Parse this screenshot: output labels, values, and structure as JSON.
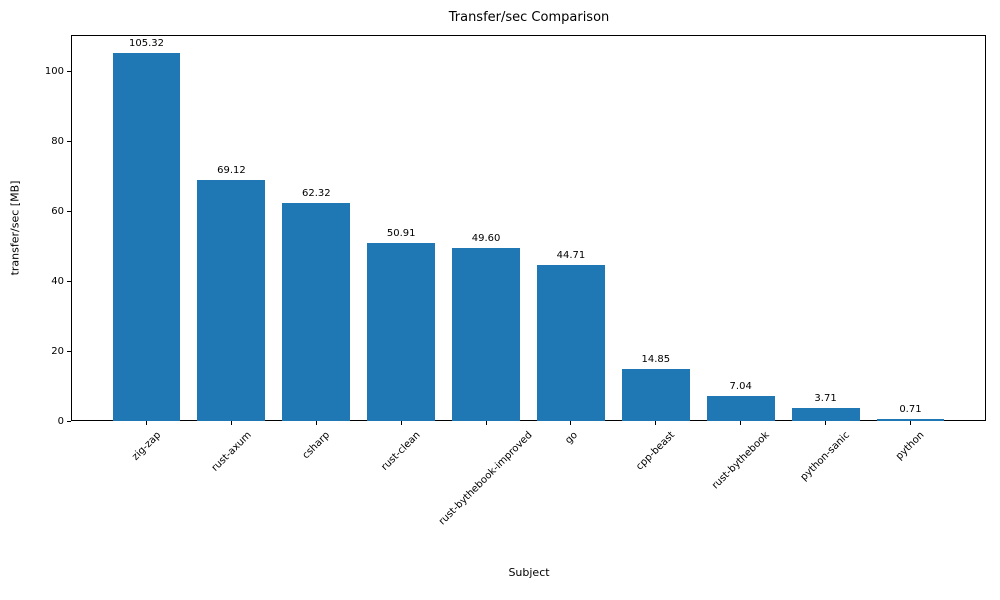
{
  "chart_data": {
    "type": "bar",
    "title": "Transfer/sec Comparison",
    "xlabel": "Subject",
    "ylabel": "transfer/sec [MB]",
    "categories": [
      "zig-zap",
      "rust-axum",
      "csharp",
      "rust-clean",
      "rust-bythebook-improved",
      "go",
      "cpp-beast",
      "rust-bythebook",
      "python-sanic",
      "python"
    ],
    "values": [
      105.32,
      69.12,
      62.32,
      50.91,
      49.6,
      44.71,
      14.85,
      7.04,
      3.71,
      0.71
    ],
    "bar_value_labels": [
      "105.32",
      "69.12",
      "62.32",
      "50.91",
      "49.60",
      "44.71",
      "14.85",
      "7.04",
      "3.71",
      "0.71"
    ],
    "ylim": [
      0,
      110.6
    ],
    "yticks": [
      0,
      20,
      40,
      60,
      80,
      100
    ],
    "ytick_labels": [
      "0",
      "20",
      "40",
      "60",
      "80",
      "100"
    ],
    "bar_color": "#1f77b4",
    "bar_width_fraction": 0.8,
    "x_tick_rotation_deg": 45,
    "grid": false,
    "legend": null
  }
}
